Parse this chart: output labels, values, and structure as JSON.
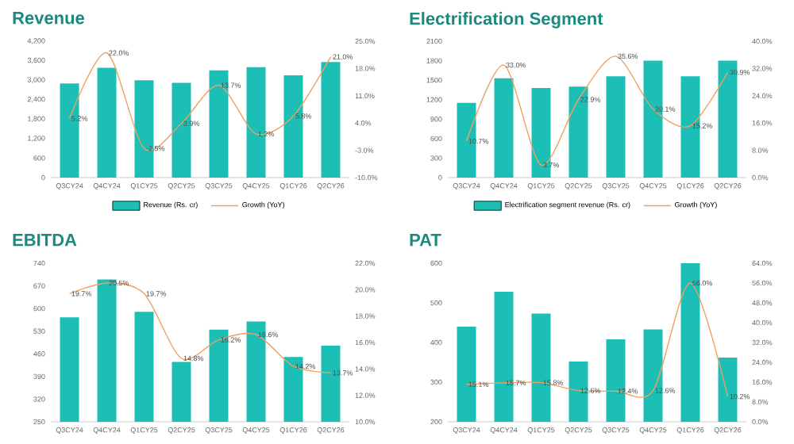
{
  "chart_data": [
    {
      "type": "bar",
      "title": "Revenue",
      "categories": [
        "Q3CY24",
        "Q4CY24",
        "Q1CY25",
        "Q2CY25",
        "Q3CY25",
        "Q4CY25",
        "Q1CY26",
        "Q2CY26"
      ],
      "series": [
        {
          "name": "Revenue (Rs. cr)",
          "color": "#1bbfb5",
          "values": [
            2900,
            3380,
            3000,
            2920,
            3300,
            3400,
            3150,
            3560
          ]
        },
        {
          "name": "Growth (YoY)",
          "type": "line",
          "axis": "y2",
          "color": "#f0a060",
          "values": [
            5.2,
            22.0,
            -2.5,
            3.9,
            13.7,
            1.2,
            5.8,
            21.0
          ],
          "value_labels": [
            "5.2%",
            "22.0%",
            "-2.5%",
            "3.9%",
            "13.7%",
            "1.2%",
            "5.8%",
            "21.0%"
          ]
        }
      ],
      "ylim": [
        0,
        4200
      ],
      "yticks": [
        0,
        {
          "value": 600,
          "label": "600"
        },
        {
          "value": 1200,
          "label": "1,200"
        },
        {
          "value": 1800,
          "label": "1,800"
        },
        {
          "value": 2400,
          "label": "2,400"
        },
        {
          "value": 3000,
          "label": "3,000"
        },
        {
          "value": 3600,
          "label": "3,600"
        },
        {
          "value": 4200,
          "label": "4,200"
        }
      ],
      "y2lim": [
        -10,
        25
      ],
      "y2ticks": [
        {
          "value": -10,
          "label": "-10.0%"
        },
        {
          "value": -3,
          "label": "-3.0%"
        },
        {
          "value": 4,
          "label": "4.0%"
        },
        {
          "value": 11,
          "label": "11.0%"
        },
        {
          "value": 18,
          "label": "18.0%"
        },
        {
          "value": 25,
          "label": "25.0%"
        }
      ],
      "legend": "bottom"
    },
    {
      "type": "bar",
      "title": "Electrification Segment",
      "categories": [
        "Q3CY24",
        "Q4CY24",
        "Q1CY25",
        "Q2CY25",
        "Q3CY25",
        "Q4CY25",
        "Q1CY26",
        "Q2CY26"
      ],
      "series": [
        {
          "name": "Electrification segment revenue (Rs. cr)",
          "color": "#1bbfb5",
          "values": [
            1150,
            1530,
            1380,
            1400,
            1560,
            1800,
            1560,
            1800
          ]
        },
        {
          "name": "Growth (YoY)",
          "type": "line",
          "axis": "y2",
          "color": "#f0a060",
          "values": [
            10.7,
            33.0,
            3.7,
            22.9,
            35.6,
            20.1,
            15.2,
            30.9
          ],
          "value_labels": [
            "10.7%",
            "33.0%",
            "3.7%",
            "22.9%",
            "35.6%",
            "20.1%",
            "15.2%",
            "30.9%"
          ]
        }
      ],
      "ylim": [
        0,
        2100
      ],
      "yticks": [
        0,
        300,
        600,
        900,
        1200,
        1500,
        1800,
        2100
      ],
      "y2lim": [
        0,
        40
      ],
      "y2ticks": [
        {
          "value": 0,
          "label": "0.0%"
        },
        {
          "value": 8,
          "label": "8.0%"
        },
        {
          "value": 16,
          "label": "16.0%"
        },
        {
          "value": 24,
          "label": "24.0%"
        },
        {
          "value": 32,
          "label": "32.0%"
        },
        {
          "value": 40,
          "label": "40.0%"
        }
      ],
      "legend": "bottom"
    },
    {
      "type": "bar",
      "title": "EBITDA",
      "categories": [
        "Q3CY24",
        "Q4CY24",
        "Q1CY25",
        "Q2CY25",
        "Q3CY25",
        "Q4CY25",
        "Q1CY26",
        "Q2CY26"
      ],
      "series": [
        {
          "color": "#1bbfb5",
          "values": [
            573,
            690,
            590,
            435,
            535,
            560,
            450,
            485
          ]
        },
        {
          "type": "line",
          "axis": "y2",
          "color": "#f0a060",
          "values": [
            19.7,
            20.5,
            19.7,
            14.8,
            16.2,
            16.6,
            14.2,
            13.7
          ],
          "value_labels": [
            "19.7%",
            "20.5%",
            "19.7%",
            "14.8%",
            "16.2%",
            "16.6%",
            "14.2%",
            "13.7%"
          ]
        }
      ],
      "ylim": [
        250,
        740
      ],
      "yticks": [
        250,
        320,
        390,
        460,
        530,
        600,
        670,
        740
      ],
      "y2lim": [
        10,
        22
      ],
      "y2ticks": [
        {
          "value": 10,
          "label": "10.0%"
        },
        {
          "value": 12,
          "label": "12.0%"
        },
        {
          "value": 14,
          "label": "14.0%"
        },
        {
          "value": 16,
          "label": "16.0%"
        },
        {
          "value": 18,
          "label": "18.0%"
        },
        {
          "value": 20,
          "label": "20.0%"
        },
        {
          "value": 22,
          "label": "22.0%"
        }
      ]
    },
    {
      "type": "bar",
      "title": "PAT",
      "categories": [
        "Q3CY24",
        "Q4CY24",
        "Q1CY25",
        "Q2CY25",
        "Q3CY25",
        "Q4CY25",
        "Q1CY26",
        "Q2CY26"
      ],
      "series": [
        {
          "color": "#1bbfb5",
          "values": [
            440,
            528,
            473,
            352,
            408,
            433,
            600,
            362
          ]
        },
        {
          "type": "line",
          "axis": "y2",
          "color": "#f0a060",
          "values": [
            15.1,
            15.7,
            15.8,
            12.6,
            12.4,
            12.6,
            56.0,
            10.2
          ],
          "value_labels": [
            "15.1%",
            "15.7%",
            "15.8%",
            "12.6%",
            "12.4%",
            "12.6%",
            "56.0%",
            "10.2%"
          ]
        }
      ],
      "ylim": [
        200,
        600
      ],
      "yticks": [
        200,
        300,
        400,
        500,
        600
      ],
      "y2lim": [
        0,
        64
      ],
      "y2ticks": [
        {
          "value": 0,
          "label": "0.0%"
        },
        {
          "value": 8,
          "label": "8.0%"
        },
        {
          "value": 16,
          "label": "16.0%"
        },
        {
          "value": 24,
          "label": "24.0%"
        },
        {
          "value": 32,
          "label": "32.0%"
        },
        {
          "value": 40,
          "label": "40.0%"
        },
        {
          "value": 48,
          "label": "48.0%"
        },
        {
          "value": 56,
          "label": "56.0%"
        },
        {
          "value": 64,
          "label": "64.0%"
        }
      ]
    }
  ]
}
